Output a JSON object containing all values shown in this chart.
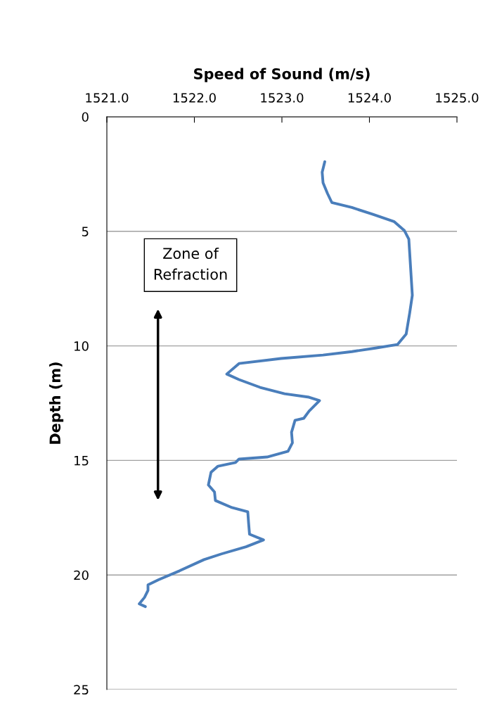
{
  "chart_data": {
    "type": "line",
    "xlabel": "Speed of Sound (m/s)",
    "ylabel": "Depth (m)",
    "annotations": [
      "Zone of Refraction"
    ],
    "xlim": [
      1521,
      1525
    ],
    "xticks": [
      {
        "value": 1521,
        "label": "1521.0"
      },
      {
        "value": 1522,
        "label": "1522.0"
      },
      {
        "value": 1523,
        "label": "1523.0"
      },
      {
        "value": 1524,
        "label": "1524.0"
      },
      {
        "value": 1525,
        "label": "1525.0"
      }
    ],
    "ylim": [
      25,
      0
    ],
    "yticks": [
      0,
      5,
      10,
      15,
      20,
      25
    ],
    "grid": "y",
    "legend": false,
    "marker": "none",
    "line_style": "solid",
    "series": [
      {
        "color": "#4a7ebb",
        "x": [
          1523.49,
          1523.46,
          1523.47,
          1523.52,
          1523.57,
          1523.8,
          1524.04,
          1524.28,
          1524.4,
          1524.45,
          1524.47,
          1524.49,
          1524.46,
          1524.42,
          1524.32,
          1524.08,
          1523.8,
          1523.47,
          1522.99,
          1522.51,
          1522.37,
          1522.51,
          1522.75,
          1523.03,
          1523.31,
          1523.43,
          1523.31,
          1523.25,
          1523.15,
          1523.11,
          1523.12,
          1523.07,
          1522.83,
          1522.51,
          1522.47,
          1522.27,
          1522.19,
          1522.16,
          1522.23,
          1522.24,
          1522.43,
          1522.61,
          1522.62,
          1522.63,
          1522.79,
          1522.59,
          1522.31,
          1522.11,
          1521.83,
          1521.59,
          1521.47,
          1521.47,
          1521.43,
          1521.37,
          1521.44
        ],
        "values": [
          1.96,
          2.42,
          2.88,
          3.34,
          3.74,
          3.96,
          4.26,
          4.57,
          4.97,
          5.34,
          6.56,
          7.79,
          8.56,
          9.48,
          9.94,
          10.09,
          10.25,
          10.4,
          10.55,
          10.77,
          11.23,
          11.47,
          11.81,
          12.09,
          12.24,
          12.39,
          12.85,
          13.16,
          13.25,
          13.77,
          14.23,
          14.6,
          14.85,
          14.94,
          15.09,
          15.25,
          15.52,
          16.07,
          16.38,
          16.75,
          17.06,
          17.24,
          17.76,
          18.22,
          18.47,
          18.77,
          19.08,
          19.33,
          19.82,
          20.21,
          20.43,
          20.67,
          20.98,
          21.26,
          21.38
        ]
      }
    ]
  }
}
